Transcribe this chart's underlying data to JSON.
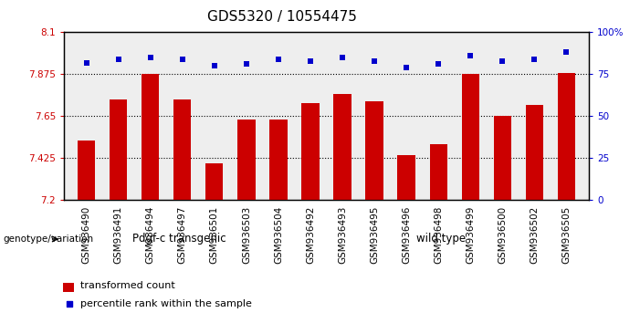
{
  "title": "GDS5320 / 10554475",
  "categories": [
    "GSM936490",
    "GSM936491",
    "GSM936494",
    "GSM936497",
    "GSM936501",
    "GSM936503",
    "GSM936504",
    "GSM936492",
    "GSM936493",
    "GSM936495",
    "GSM936496",
    "GSM936498",
    "GSM936499",
    "GSM936500",
    "GSM936502",
    "GSM936505"
  ],
  "bar_values": [
    7.52,
    7.74,
    7.875,
    7.74,
    7.4,
    7.635,
    7.635,
    7.72,
    7.77,
    7.73,
    7.44,
    7.5,
    7.875,
    7.65,
    7.71,
    7.88
  ],
  "percentile_values": [
    82,
    84,
    85,
    84,
    80,
    81,
    84,
    83,
    85,
    83,
    79,
    81,
    86,
    83,
    84,
    88
  ],
  "ylim_left": [
    7.2,
    8.1
  ],
  "ylim_right": [
    0,
    100
  ],
  "yticks_left": [
    7.2,
    7.425,
    7.65,
    7.875,
    8.1
  ],
  "yticks_right": [
    0,
    25,
    50,
    75,
    100
  ],
  "ytick_labels_left": [
    "7.2",
    "7.425",
    "7.65",
    "7.875",
    "8.1"
  ],
  "ytick_labels_right": [
    "0",
    "25",
    "50",
    "75",
    "100%"
  ],
  "grid_values": [
    7.425,
    7.65,
    7.875
  ],
  "bar_color": "#cc0000",
  "percentile_color": "#0000cc",
  "bg_color": "#ffffff",
  "plot_bg_color": "#eeeeee",
  "group1_label": "Pdgf-c transgenic",
  "group2_label": "wild type",
  "group1_color": "#aaddaa",
  "group2_color": "#44bb44",
  "group1_count": 7,
  "group2_count": 9,
  "genotype_label": "genotype/variation",
  "legend_bar_label": "transformed count",
  "legend_pct_label": "percentile rank within the sample",
  "bar_width": 0.55,
  "title_fontsize": 11,
  "tick_fontsize": 7.5,
  "label_fontsize": 8
}
